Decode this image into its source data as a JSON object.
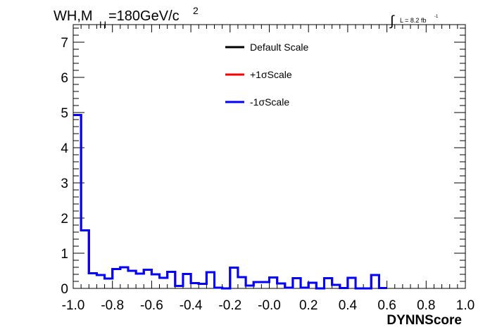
{
  "chart_data": {
    "type": "step",
    "title_main": "WH,M",
    "title_sub": "H",
    "title_rest": "=180GeV/c",
    "title_sup": "2",
    "lumi_integral": "∫",
    "lumi_text": "L = 8.2 fb",
    "lumi_sup": "-1",
    "xlabel": "DYNNScore",
    "ylabel": "",
    "xlim": [
      -1.0,
      1.0
    ],
    "ylim": [
      0,
      7.5
    ],
    "x_ticks": [
      "-1.0",
      "-0.8",
      "-0.6",
      "-0.4",
      "-0.2",
      "-0.0",
      "0.2",
      "0.4",
      "0.6",
      "0.8",
      "1.0"
    ],
    "y_ticks": [
      "0",
      "1",
      "2",
      "3",
      "4",
      "5",
      "6",
      "7"
    ],
    "bin_edges_start": -1.0,
    "bin_width": 0.04,
    "legend_position": "top-center",
    "series": [
      {
        "name": "Default Scale",
        "color": "#000000",
        "values": [
          4.93,
          1.65,
          0.43,
          0.38,
          0.28,
          0.55,
          0.6,
          0.5,
          0.42,
          0.53,
          0.4,
          0.3,
          0.47,
          0.07,
          0.41,
          0.15,
          0.13,
          0.46,
          0.02,
          0.0,
          0.59,
          0.32,
          0.08,
          0.18,
          0.18,
          0.31,
          0.14,
          0.02,
          0.29,
          0.02,
          0.16,
          0.0,
          0.29,
          0.1,
          0.01,
          0.3,
          0.0,
          0.0,
          0.38,
          0.01
        ]
      },
      {
        "name": "+1σScale",
        "color": "#ff0000",
        "values": [
          4.93,
          1.65,
          0.43,
          0.38,
          0.28,
          0.55,
          0.6,
          0.5,
          0.42,
          0.53,
          0.4,
          0.3,
          0.47,
          0.07,
          0.41,
          0.15,
          0.13,
          0.46,
          0.02,
          0.0,
          0.59,
          0.32,
          0.08,
          0.18,
          0.18,
          0.31,
          0.14,
          0.02,
          0.29,
          0.02,
          0.16,
          0.0,
          0.29,
          0.1,
          0.01,
          0.3,
          0.0,
          0.0,
          0.38,
          0.01
        ]
      },
      {
        "name": "-1σScale",
        "color": "#0000ff",
        "values": [
          4.93,
          1.65,
          0.43,
          0.38,
          0.28,
          0.55,
          0.6,
          0.5,
          0.42,
          0.53,
          0.4,
          0.3,
          0.47,
          0.07,
          0.41,
          0.15,
          0.13,
          0.46,
          0.02,
          0.0,
          0.59,
          0.32,
          0.08,
          0.18,
          0.18,
          0.31,
          0.14,
          0.02,
          0.29,
          0.02,
          0.16,
          0.0,
          0.29,
          0.1,
          0.01,
          0.3,
          0.0,
          0.0,
          0.38,
          0.01
        ]
      }
    ]
  }
}
